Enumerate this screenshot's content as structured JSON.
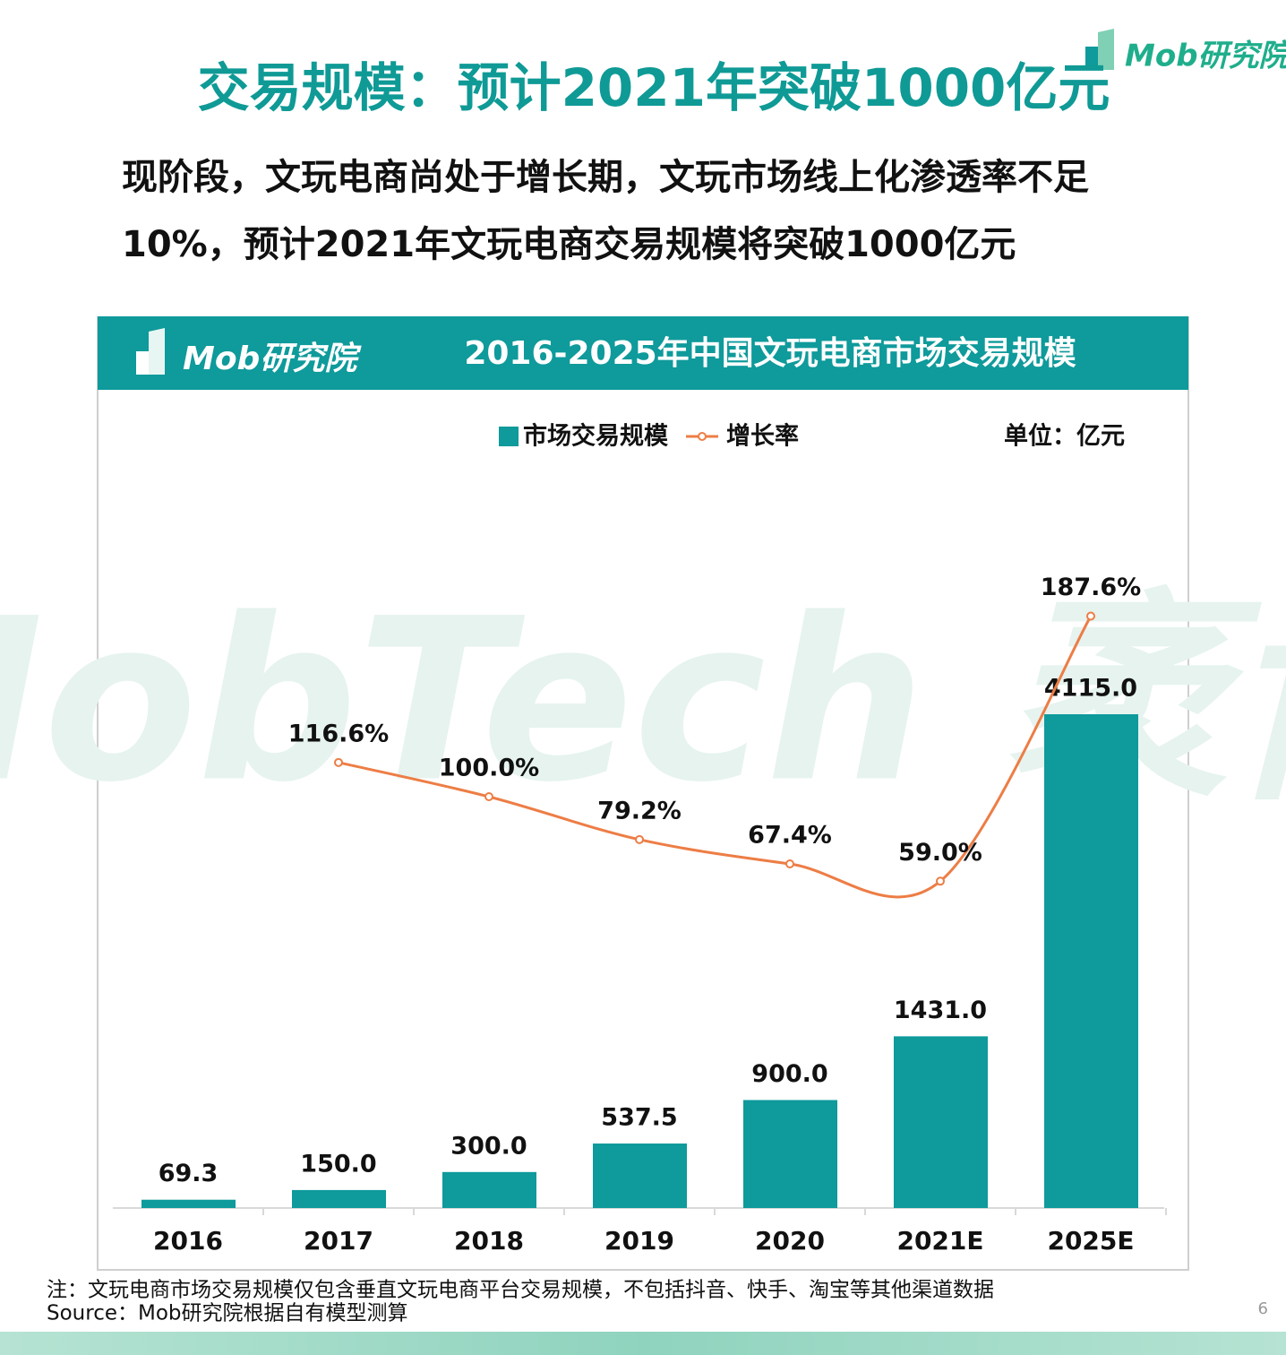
{
  "logo": "Mob研究院",
  "title": "交易规模：预计2021年突破1000亿元",
  "subtitle_lines": [
    "现阶段，文玩电商尚处于增长期，文玩市场线上化渗透率不足",
    "10%，预计2021年文玩电商交易规模将突破1000亿元"
  ],
  "chart_data": {
    "type": "bar-line",
    "title": "2016-2025年中国文玩电商市场交易规模",
    "unit": "单位：亿元",
    "watermark": "MobTech 袤博",
    "categories": [
      "2016",
      "2017",
      "2018",
      "2019",
      "2020",
      "2021E",
      "2025E"
    ],
    "series": [
      {
        "name": "市场交易规模",
        "type": "bar",
        "color": "#0f9a9b",
        "values": [
          69.3,
          150.0,
          300.0,
          537.5,
          900.0,
          1431.0,
          4115.0
        ],
        "value_labels": [
          "69.3",
          "150.0",
          "300.0",
          "537.5",
          "900.0",
          "1431.0",
          "4115.0"
        ]
      },
      {
        "name": "增长率",
        "type": "line",
        "axis": "y2",
        "color": "#ed7d45",
        "values": [
          null,
          116.6,
          100.0,
          79.2,
          67.4,
          59.0,
          187.6
        ],
        "value_labels": [
          null,
          "116.6%",
          "100.0%",
          "79.2%",
          "67.4%",
          "59.0%",
          "187.6%"
        ]
      }
    ]
  },
  "notes": [
    "注：文玩电商市场交易规模仅包含垂直文玩电商平台交易规模，不包括抖音、快手、淘宝等其他渠道数据",
    "Source：Mob研究院根据自有模型测算"
  ],
  "page_number": "6"
}
